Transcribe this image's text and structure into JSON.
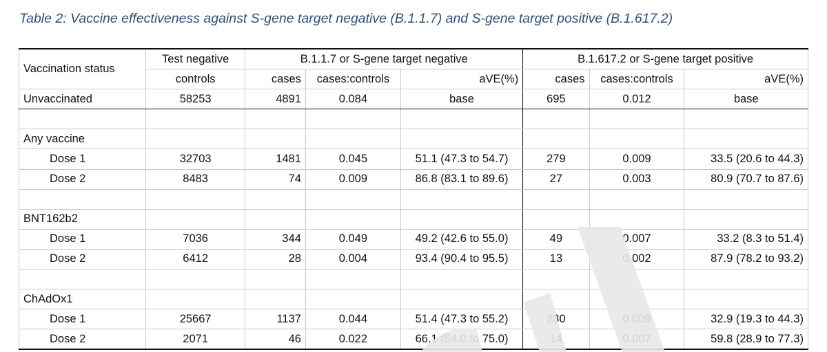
{
  "caption": "Table 2: Vaccine effectiveness against S-gene target negative (B.1.1.7) and S-gene target positive (B.1.617.2)",
  "watermark_color": "#e8e8e8",
  "headers": {
    "vaccination_status": "Vaccination status",
    "test_negative_line1": "Test negative",
    "test_negative_line2": "controls",
    "group_b117": "B.1.1.7 or S-gene target negative",
    "group_b16172": "B.1.617.2 or S-gene target positive",
    "cases": "cases",
    "cases_controls": "cases:controls",
    "ave": "aVE(%)"
  },
  "rows": [
    {
      "label": "Unvaccinated",
      "controls": "58253",
      "a_cases": "4891",
      "a_ratio": "0.084",
      "a_ave": "base",
      "b_cases": "695",
      "b_ratio": "0.012",
      "b_ave": "base"
    },
    {
      "label": "Any vaccine"
    },
    {
      "label": "Dose 1",
      "controls": "32703",
      "a_cases": "1481",
      "a_ratio": "0.045",
      "a_ave": "51.1 (47.3 to 54.7)",
      "b_cases": "279",
      "b_ratio": "0.009",
      "b_ave": "33.5 (20.6 to 44.3)"
    },
    {
      "label": "Dose 2",
      "controls": "8483",
      "a_cases": "74",
      "a_ratio": "0.009",
      "a_ave": "86.8 (83.1 to 89.6)",
      "b_cases": "27",
      "b_ratio": "0.003",
      "b_ave": "80.9 (70.7 to 87.6)"
    },
    {
      "label": "BNT162b2"
    },
    {
      "label": "Dose 1",
      "controls": "7036",
      "a_cases": "344",
      "a_ratio": "0.049",
      "a_ave": "49.2 (42.6 to 55.0)",
      "b_cases": "49",
      "b_ratio": "0.007",
      "b_ave": "33.2 (8.3 to 51.4)"
    },
    {
      "label": "Dose 2",
      "controls": "6412",
      "a_cases": "28",
      "a_ratio": "0.004",
      "a_ave": "93.4 (90.4 to 95.5)",
      "b_cases": "13",
      "b_ratio": "0.002",
      "b_ave": "87.9 (78.2 to 93.2)"
    },
    {
      "label": "ChAdOx1"
    },
    {
      "label": "Dose 1",
      "controls": "25667",
      "a_cases": "1137",
      "a_ratio": "0.044",
      "a_ave": "51.4 (47.3 to 55.2)",
      "b_cases": "230",
      "b_ratio": "0.009",
      "b_ave": "32.9 (19.3 to 44.3)"
    },
    {
      "label": "Dose 2",
      "controls": "2071",
      "a_cases": "46",
      "a_ratio": "0.022",
      "a_ave": "66.1 (54.0 to 75.0)",
      "b_cases": "14",
      "b_ratio": "0.007",
      "b_ave": "59.8 (28.9 to 77.3)"
    }
  ]
}
